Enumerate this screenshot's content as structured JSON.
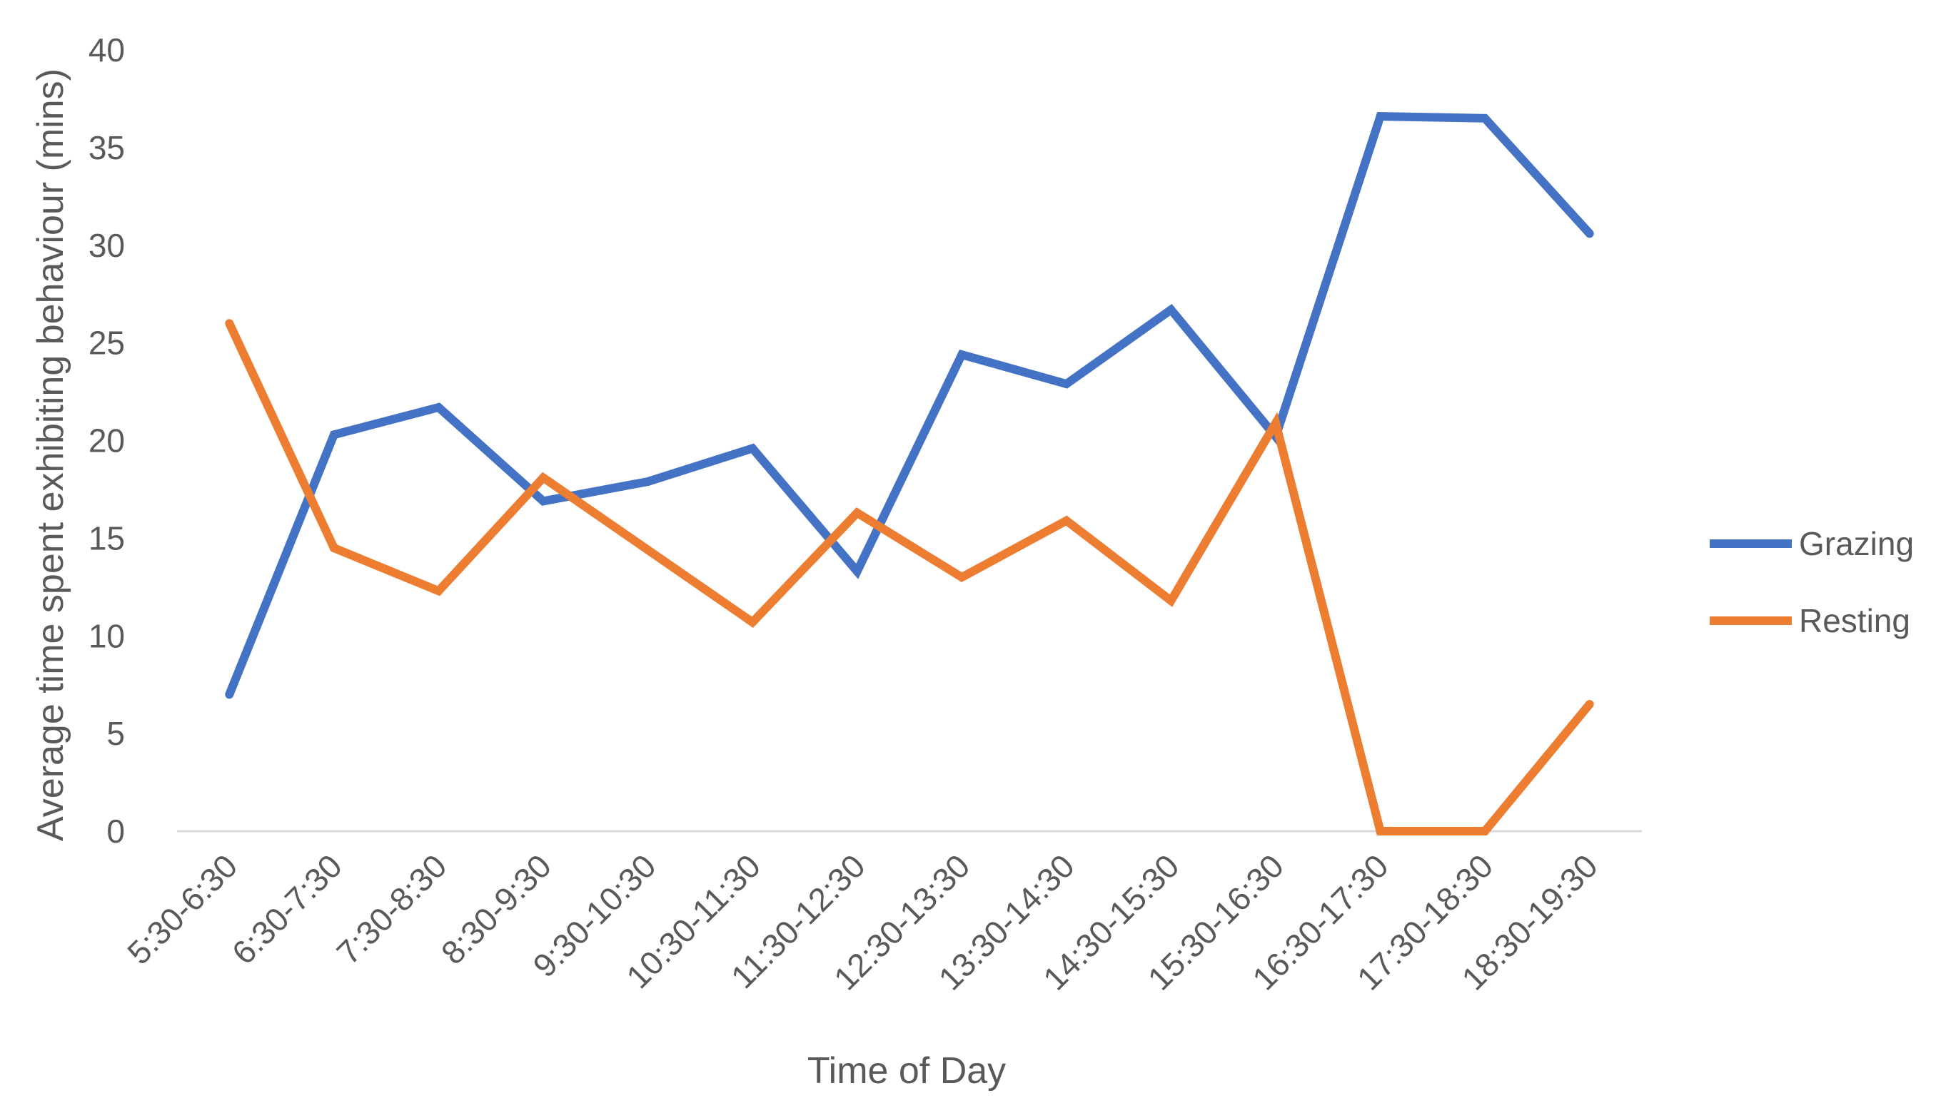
{
  "chart_data": {
    "type": "line",
    "title": "",
    "xlabel": "Time of Day",
    "ylabel": "Average time spent exhibiting behaviour (mins)",
    "ylim": [
      0,
      40
    ],
    "yticks": [
      "0",
      "5",
      "10",
      "15",
      "20",
      "25",
      "30",
      "35",
      "40"
    ],
    "grid": false,
    "legend_position": "right",
    "categories": [
      "5:30-6:30",
      "6:30-7:30",
      "7:30-8:30",
      "8:30-9:30",
      "9:30-10:30",
      "10:30-11:30",
      "11:30-12:30",
      "12:30-13:30",
      "13:30-14:30",
      "14:30-15:30",
      "15:30-16:30",
      "16:30-17:30",
      "17:30-18:30",
      "18:30-19:30"
    ],
    "series": [
      {
        "name": "Grazing",
        "color": "#4472C4",
        "values": [
          7.0,
          20.3,
          21.7,
          16.9,
          17.9,
          19.6,
          13.3,
          24.4,
          22.9,
          26.7,
          20.2,
          36.6,
          36.5,
          30.6
        ]
      },
      {
        "name": "Resting",
        "color": "#ED7D31",
        "values": [
          26.0,
          14.5,
          12.3,
          18.1,
          14.4,
          10.7,
          16.3,
          13.0,
          15.9,
          11.8,
          20.9,
          0.0,
          0.0,
          6.5
        ]
      }
    ]
  }
}
